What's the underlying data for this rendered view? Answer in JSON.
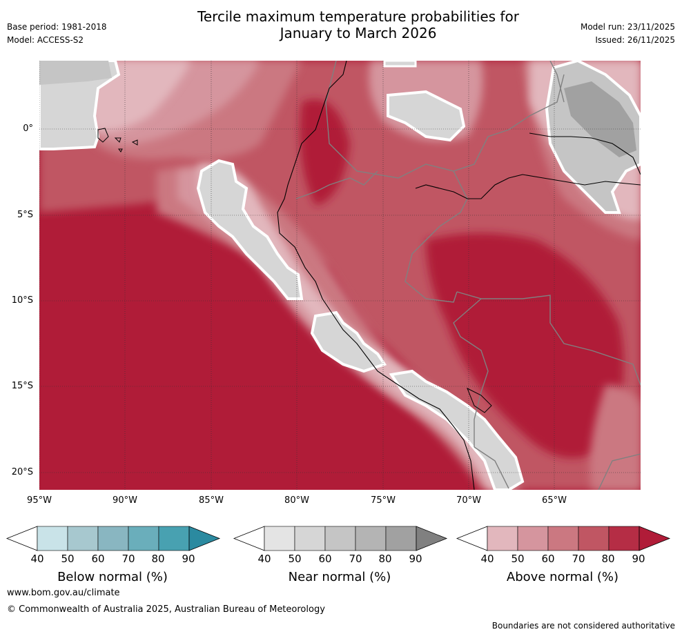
{
  "header": {
    "title_line1": "Tercile maximum temperature probabilities for",
    "title_line2": "January to March 2026",
    "base_period": "Base period: 1981-2018",
    "model": "Model: ACCESS-S2",
    "model_run": "Model run: 23/11/2025",
    "issued": "Issued: 26/11/2025"
  },
  "map": {
    "region": "Western South America / Eastern Pacific",
    "lat_labels": [
      "0°",
      "5°S",
      "10°S",
      "15°S",
      "20°S"
    ],
    "lon_labels": [
      "95°W",
      "90°W",
      "85°W",
      "80°W",
      "75°W",
      "70°W",
      "65°W"
    ]
  },
  "colorbars": {
    "below": {
      "title": "Below normal (%)",
      "ticks": [
        "40",
        "50",
        "60",
        "70",
        "80",
        "90"
      ],
      "colors": [
        "#ffffff",
        "#c9e3e8",
        "#a7c8cf",
        "#89b6c1",
        "#6aaebb",
        "#48a1b1",
        "#2b8aa0"
      ]
    },
    "near": {
      "title": "Near normal (%)",
      "ticks": [
        "40",
        "50",
        "60",
        "70",
        "80",
        "90"
      ],
      "colors": [
        "#ffffff",
        "#e4e4e4",
        "#d6d6d6",
        "#c5c5c5",
        "#b4b4b4",
        "#a1a1a1",
        "#808080"
      ]
    },
    "above": {
      "title": "Above normal (%)",
      "ticks": [
        "40",
        "50",
        "60",
        "70",
        "80",
        "90"
      ],
      "colors": [
        "#ffffff",
        "#e2b7bd",
        "#d5959e",
        "#cb7881",
        "#c05663",
        "#b52d45",
        "#b01c38"
      ]
    }
  },
  "footer": {
    "website": "www.bom.gov.au/climate",
    "copyright": "© Commonwealth of Australia 2025, Australian Bureau of Meteorology",
    "disclaimer": "Boundaries are not considered authoritative"
  }
}
